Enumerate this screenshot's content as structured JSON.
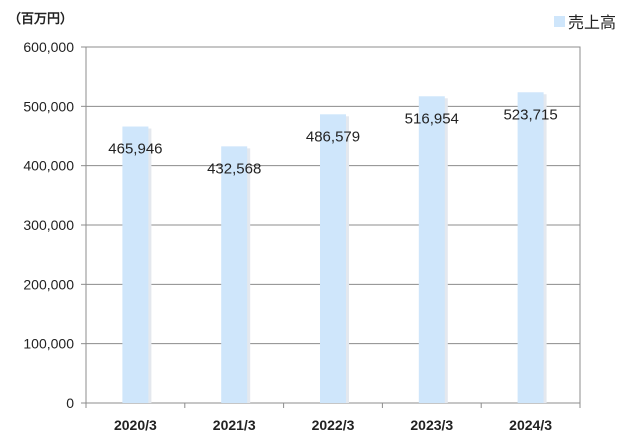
{
  "chart_data": {
    "type": "bar",
    "unit_label": "（百万円）",
    "categories": [
      "2020/3",
      "2021/3",
      "2022/3",
      "2023/3",
      "2024/3"
    ],
    "series": [
      {
        "name": "売上高",
        "values": [
          465946,
          432568,
          486579,
          516954,
          523715
        ]
      }
    ],
    "data_labels": [
      "465,946",
      "432,568",
      "486,579",
      "516,954",
      "523,715"
    ],
    "y_ticks": [
      "0",
      "100,000",
      "200,000",
      "300,000",
      "400,000",
      "500,000",
      "600,000"
    ],
    "ylim": [
      0,
      600000
    ],
    "grid": true,
    "legend_position": "top-right",
    "bar_color": "#cfe6fb",
    "grid_color": "#8c8c8c"
  }
}
